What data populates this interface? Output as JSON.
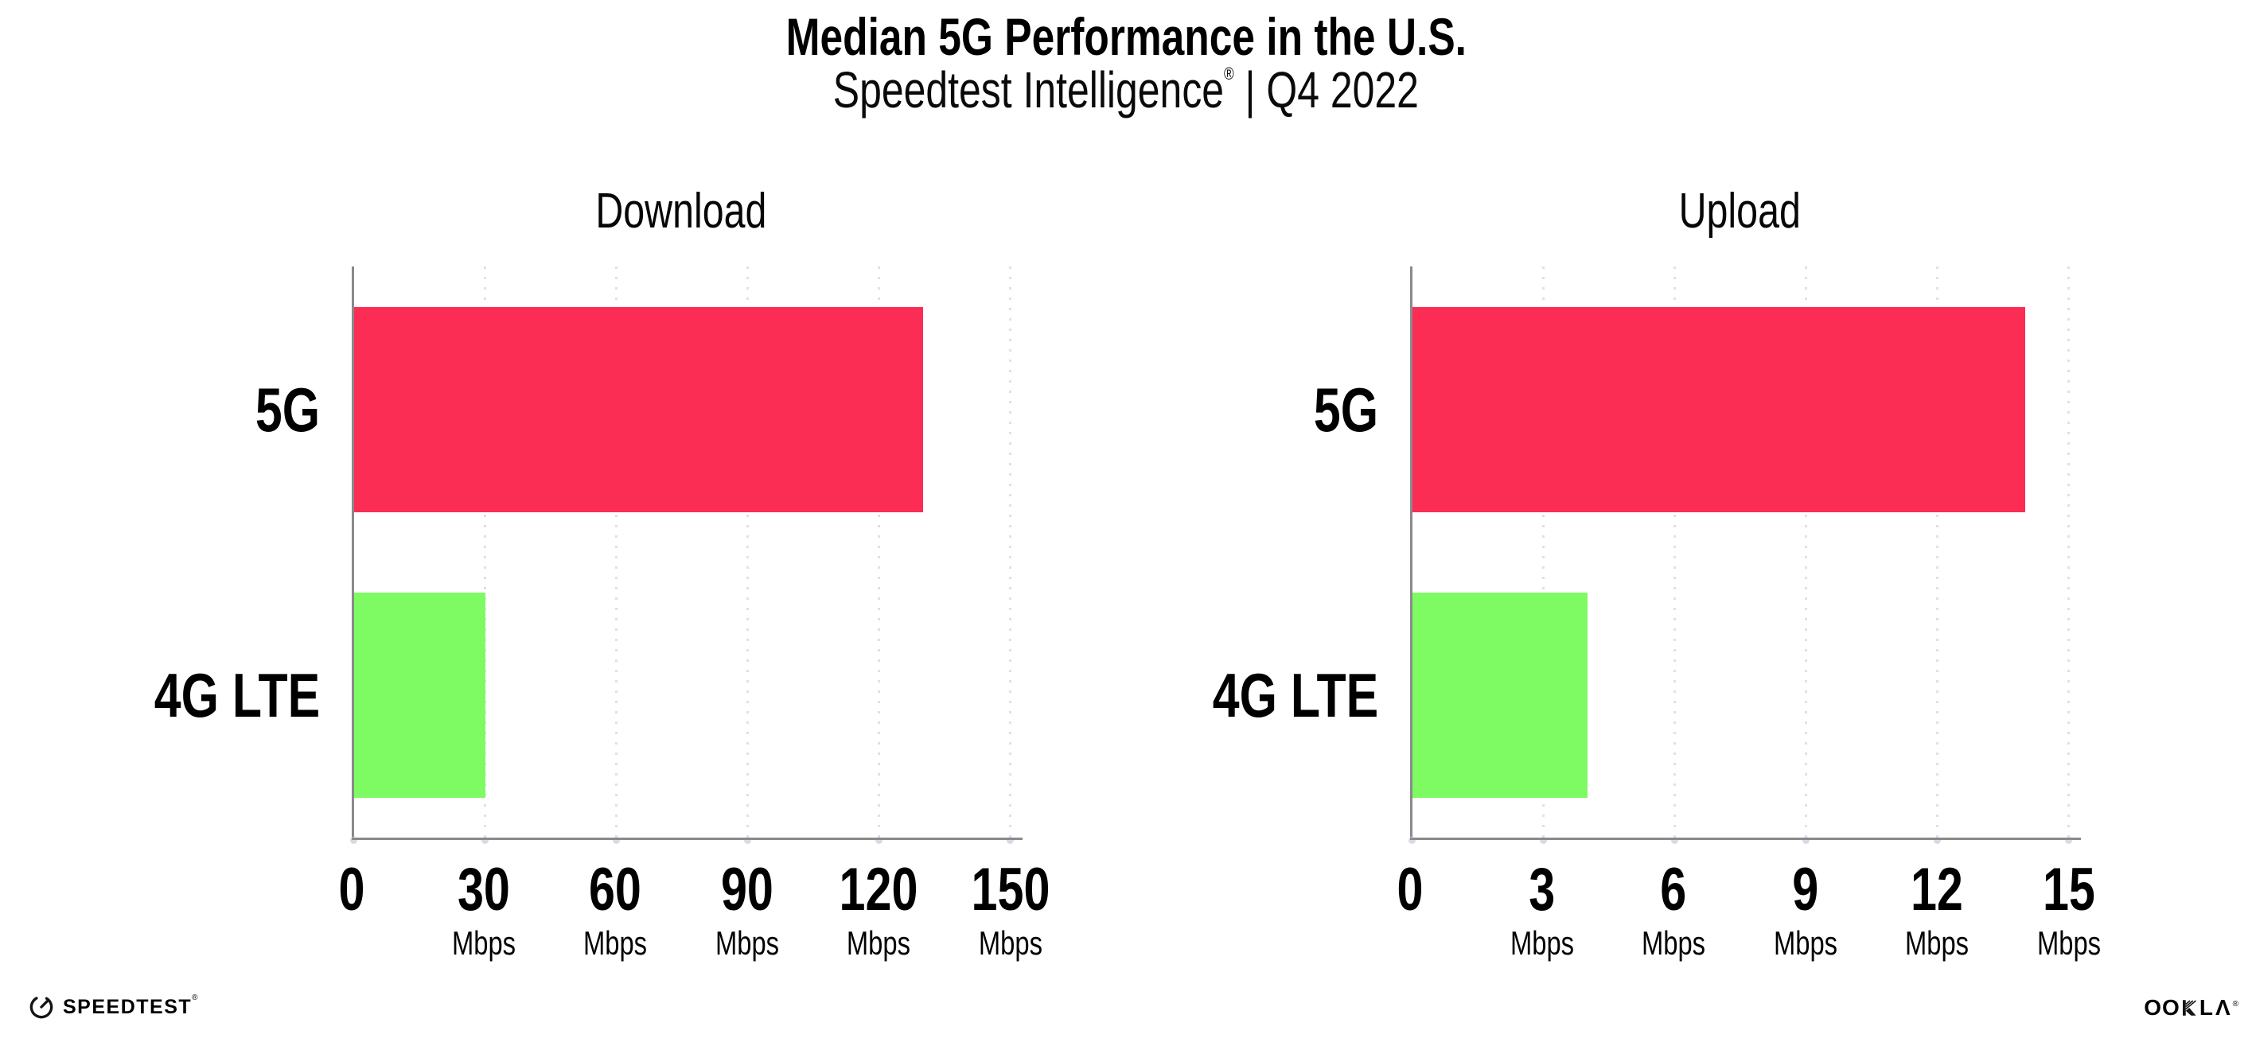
{
  "header": {
    "title": "Median 5G Performance in the U.S.",
    "subtitle_brand": "Speedtest Intelligence",
    "subtitle_reg": "®",
    "subtitle_rest": " | Q4 2022"
  },
  "colors": {
    "bar_5g": "#fc2d55",
    "bar_4g": "#7efb63",
    "axis": "#8a8a8a",
    "gridline": "#dfe0ea",
    "text": "#000000"
  },
  "chart_data": [
    {
      "type": "bar",
      "orientation": "horizontal",
      "title": "Download",
      "categories": [
        "5G",
        "4G LTE"
      ],
      "values": [
        130,
        30
      ],
      "unit": "Mbps",
      "xlim": [
        0,
        150
      ],
      "ticks": [
        0,
        30,
        60,
        90,
        120,
        150
      ],
      "bar_colors": [
        "#fc2d55",
        "#7efb63"
      ],
      "grid": "dotted-vertical",
      "legend": "none"
    },
    {
      "type": "bar",
      "orientation": "horizontal",
      "title": "Upload",
      "categories": [
        "5G",
        "4G LTE"
      ],
      "values": [
        14,
        4
      ],
      "unit": "Mbps",
      "xlim": [
        0,
        15
      ],
      "ticks": [
        0,
        3,
        6,
        9,
        12,
        15
      ],
      "bar_colors": [
        "#fc2d55",
        "#7efb63"
      ],
      "grid": "dotted-vertical",
      "legend": "none"
    }
  ],
  "footer": {
    "speedtest_label": "SPEEDTEST",
    "speedtest_reg": "®",
    "ookla_oo": "OO",
    "ookla_l": "L",
    "ookla_a": "Λ",
    "ookla_reg": "®",
    "ookla_label": "OOKLA"
  }
}
